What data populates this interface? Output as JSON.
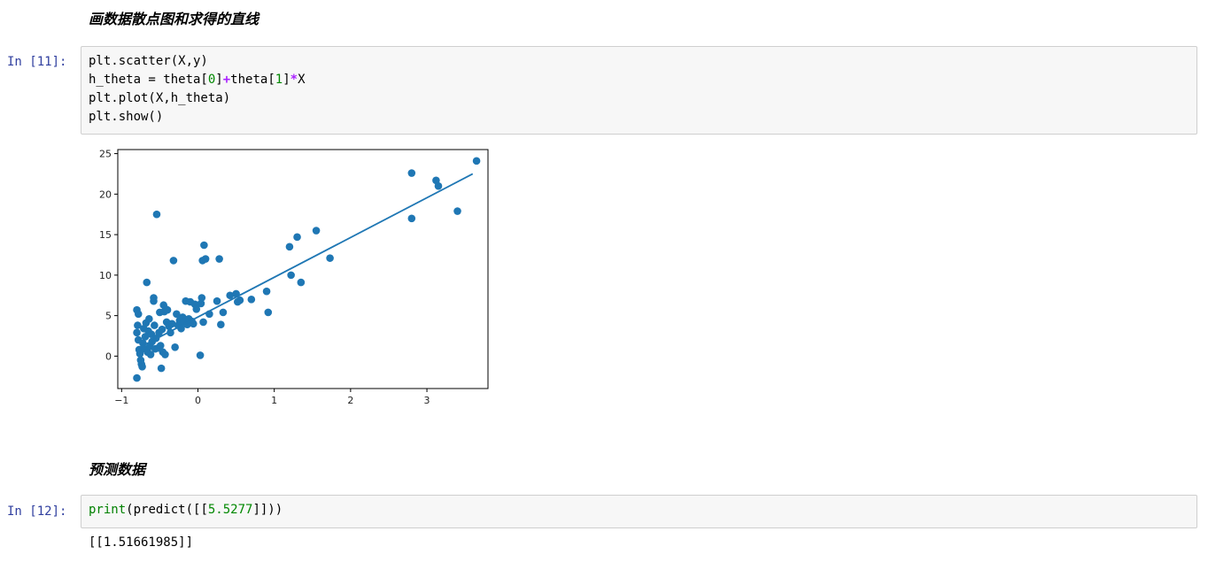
{
  "cells": {
    "md1": "画数据散点图和求得的直线",
    "cell11": {
      "prompt": "In  [11]:",
      "lines": [
        "plt.scatter(X,y)",
        "h_theta = theta[0]+theta[1]*X",
        "plt.plot(X,h_theta)",
        "plt.show()"
      ]
    },
    "md2": "预测数据",
    "cell12": {
      "prompt": "In  [12]:",
      "code_fn": "print",
      "code_open": "(predict([[",
      "code_num": "5.5277",
      "code_close": "]]))",
      "output": "[[1.51661985]]"
    }
  },
  "chart_data": {
    "type": "scatter",
    "xlim": [
      -1.05,
      3.8
    ],
    "ylim": [
      -4,
      25.5
    ],
    "xticks": [
      "−1",
      "0",
      "1",
      "2",
      "3"
    ],
    "xtick_values": [
      -1,
      0,
      1,
      2,
      3
    ],
    "yticks": [
      "0",
      "5",
      "10",
      "15",
      "20",
      "25"
    ],
    "ytick_values": [
      0,
      5,
      10,
      15,
      20,
      25
    ],
    "grid": false,
    "colors": {
      "marker": "#1f77b4",
      "line": "#1f77b4"
    },
    "points": [
      [
        -0.8,
        -2.7
      ],
      [
        -0.8,
        5.7
      ],
      [
        -0.78,
        5.2
      ],
      [
        -0.79,
        3.8
      ],
      [
        -0.8,
        2.9
      ],
      [
        -0.78,
        2.0
      ],
      [
        -0.77,
        0.8
      ],
      [
        -0.76,
        0.3
      ],
      [
        -0.75,
        -0.5
      ],
      [
        -0.74,
        -1.0
      ],
      [
        -0.73,
        -1.3
      ],
      [
        -0.72,
        1.6
      ],
      [
        -0.71,
        3.4
      ],
      [
        -0.7,
        0.9
      ],
      [
        -0.69,
        2.4
      ],
      [
        -0.68,
        4.1
      ],
      [
        -0.67,
        9.1
      ],
      [
        -0.66,
        0.5
      ],
      [
        -0.65,
        3.1
      ],
      [
        -0.64,
        4.6
      ],
      [
        -0.63,
        1.2
      ],
      [
        -0.62,
        0.2
      ],
      [
        -0.61,
        2.7
      ],
      [
        -0.6,
        1.8
      ],
      [
        -0.58,
        7.2
      ],
      [
        -0.58,
        6.8
      ],
      [
        -0.57,
        3.8
      ],
      [
        -0.56,
        0.9
      ],
      [
        -0.55,
        2.2
      ],
      [
        -0.54,
        17.5
      ],
      [
        -0.52,
        1.0
      ],
      [
        -0.51,
        2.9
      ],
      [
        -0.5,
        5.4
      ],
      [
        -0.49,
        1.3
      ],
      [
        -0.48,
        -1.5
      ],
      [
        -0.47,
        3.3
      ],
      [
        -0.46,
        0.5
      ],
      [
        -0.45,
        6.3
      ],
      [
        -0.44,
        5.5
      ],
      [
        -0.43,
        0.2
      ],
      [
        -0.42,
        5.8
      ],
      [
        -0.41,
        4.2
      ],
      [
        -0.4,
        5.7
      ],
      [
        -0.38,
        3.7
      ],
      [
        -0.36,
        2.9
      ],
      [
        -0.34,
        4.0
      ],
      [
        -0.32,
        11.8
      ],
      [
        -0.3,
        1.1
      ],
      [
        -0.28,
        5.2
      ],
      [
        -0.26,
        3.8
      ],
      [
        -0.24,
        4.4
      ],
      [
        -0.22,
        3.4
      ],
      [
        -0.2,
        4.8
      ],
      [
        -0.18,
        4.2
      ],
      [
        -0.16,
        6.8
      ],
      [
        -0.14,
        3.9
      ],
      [
        -0.12,
        4.6
      ],
      [
        -0.1,
        6.7
      ],
      [
        -0.08,
        4.3
      ],
      [
        -0.06,
        4.0
      ],
      [
        -0.04,
        6.4
      ],
      [
        -0.02,
        5.8
      ],
      [
        0.03,
        0.1
      ],
      [
        0.04,
        6.5
      ],
      [
        0.05,
        7.2
      ],
      [
        0.06,
        11.8
      ],
      [
        0.07,
        4.2
      ],
      [
        0.08,
        13.7
      ],
      [
        0.1,
        12.0
      ],
      [
        0.15,
        5.2
      ],
      [
        0.25,
        6.8
      ],
      [
        0.28,
        12.0
      ],
      [
        0.3,
        3.9
      ],
      [
        0.33,
        5.4
      ],
      [
        0.42,
        7.5
      ],
      [
        0.5,
        7.7
      ],
      [
        0.52,
        6.7
      ],
      [
        0.55,
        6.9
      ],
      [
        0.7,
        7.0
      ],
      [
        0.9,
        8.0
      ],
      [
        0.92,
        5.4
      ],
      [
        1.2,
        13.5
      ],
      [
        1.22,
        10.0
      ],
      [
        1.3,
        14.7
      ],
      [
        1.35,
        9.1
      ],
      [
        1.55,
        15.5
      ],
      [
        1.73,
        12.1
      ],
      [
        2.8,
        22.6
      ],
      [
        2.8,
        17.0
      ],
      [
        3.12,
        21.7
      ],
      [
        3.15,
        21.0
      ],
      [
        3.4,
        17.9
      ],
      [
        3.65,
        24.1
      ]
    ],
    "line": {
      "x": [
        -0.8,
        3.6
      ],
      "y": [
        0.9,
        22.5
      ]
    }
  }
}
